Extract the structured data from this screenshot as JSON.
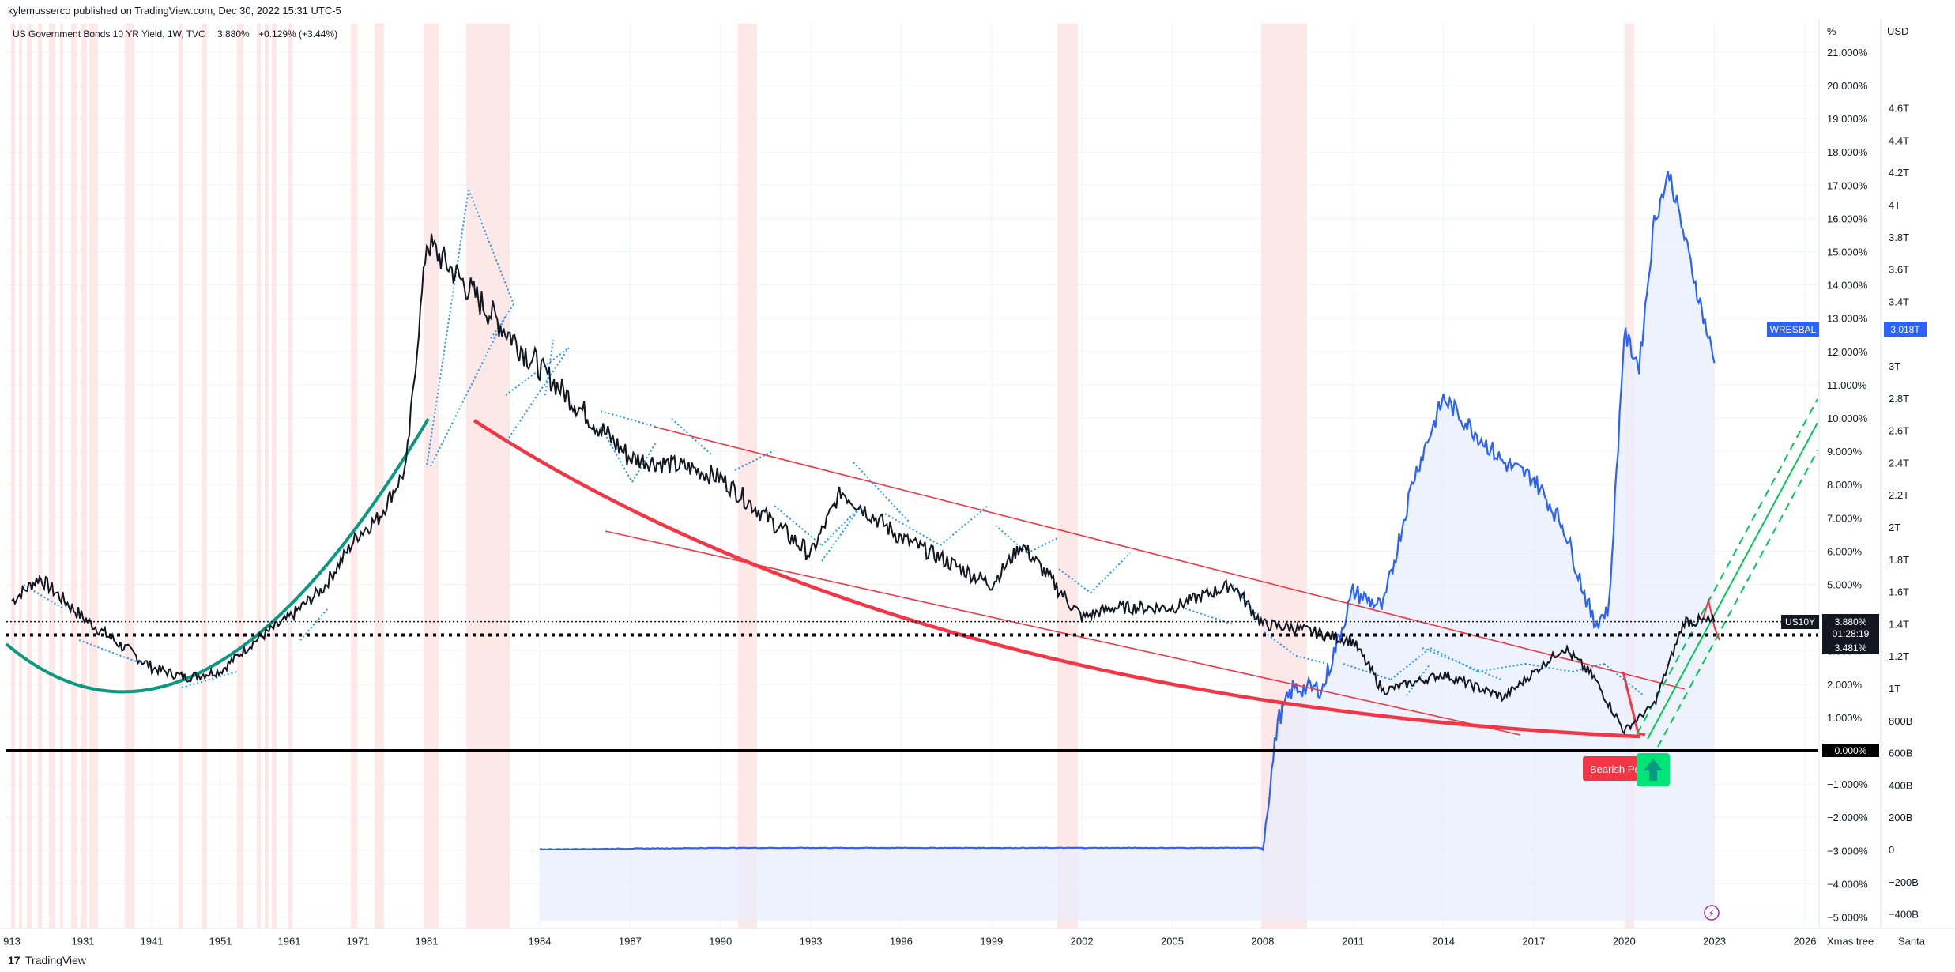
{
  "header": {
    "published_by": "kylemusserco published on TradingView.com, Dec 30, 2022 15:31 UTC-5"
  },
  "legend": {
    "symbol_line": "US Government Bonds 10 YR Yield, 1W, TVC",
    "last": "3.880%",
    "change": "+0.129% (+3.44%)"
  },
  "right_axis_pct": {
    "unit": "%",
    "ticks": [
      "21.000%",
      "20.000%",
      "19.000%",
      "18.000%",
      "17.000%",
      "16.000%",
      "15.000%",
      "14.000%",
      "13.000%",
      "12.000%",
      "11.000%",
      "10.000%",
      "9.000%",
      "8.000%",
      "7.000%",
      "6.000%",
      "5.000%",
      "4.000%",
      "3.000%",
      "2.000%",
      "1.000%",
      "0.000%",
      "−1.000%",
      "−2.000%",
      "−3.000%",
      "−4.000%",
      "−5.000%"
    ]
  },
  "right_axis_usd": {
    "unit": "USD",
    "ticks": [
      "4.6T",
      "4.4T",
      "4.2T",
      "4T",
      "3.8T",
      "3.6T",
      "3.4T",
      "3.2T",
      "3T",
      "2.8T",
      "2.6T",
      "2.4T",
      "2.2T",
      "2T",
      "1.8T",
      "1.6T",
      "1.4T",
      "1.2T",
      "1T",
      "800B",
      "600B",
      "400B",
      "200B",
      "0",
      "−200B",
      "−400B"
    ]
  },
  "x_axis": {
    "ticks": [
      "913",
      "1931",
      "1941",
      "1951",
      "1961",
      "1971",
      "1981",
      "1984",
      "1987",
      "1990",
      "1993",
      "1996",
      "1999",
      "2002",
      "2005",
      "2008",
      "2011",
      "2014",
      "2017",
      "2020",
      "2023",
      "2026"
    ],
    "extra_left": "Xmas tree",
    "extra_right": "Santa"
  },
  "badges": {
    "us10y_name": "US10Y",
    "us10y_value": "3.880%",
    "countdown": "01:28:19",
    "level_line": "3.481%",
    "zero_line": "0.000%",
    "wresbal_name": "WRESBAL",
    "wresbal_value": "3.018T",
    "bearish_label": "Bearish Pe",
    "lightning": "⚡"
  },
  "footer": {
    "brand": "TradingView",
    "logo": "17"
  },
  "colors": {
    "yield_line": "#131722",
    "wresbal_line": "#2962ff",
    "wresbal_fill": "#e8edfb",
    "recession_band": "#fde4e4",
    "red_trend": "#f23645",
    "green_arc": "#089981",
    "dotted_blue": "#2196f3",
    "green_channel": "#00c853"
  },
  "chart_data": {
    "type": "line",
    "title": "",
    "series": [
      {
        "name": "US Government Bonds 10 YR Yield",
        "unit": "%",
        "x": [
          "1913",
          "1920",
          "1931",
          "1941",
          "1946",
          "1951",
          "1956",
          "1961",
          "1966",
          "1971",
          "1974",
          "1978",
          "1981",
          "1984",
          "1987",
          "1989",
          "1990",
          "1993",
          "1994",
          "1996",
          "1999",
          "2000",
          "2002",
          "2003",
          "2005",
          "2007",
          "2008",
          "2009",
          "2011",
          "2012",
          "2014",
          "2016",
          "2018",
          "2019",
          "2020",
          "2021",
          "2022",
          "2023"
        ],
        "values": [
          4.5,
          5.2,
          4.0,
          2.5,
          2.2,
          2.4,
          3.3,
          4.0,
          4.9,
          6.5,
          7.0,
          8.5,
          15.3,
          11.5,
          8.8,
          8.5,
          8.2,
          5.9,
          7.8,
          6.4,
          5.0,
          6.2,
          4.0,
          4.3,
          4.3,
          5.0,
          3.8,
          3.7,
          3.3,
          1.8,
          2.3,
          1.6,
          3.1,
          2.2,
          0.6,
          1.4,
          3.9,
          3.88
        ]
      },
      {
        "name": "WRESBAL",
        "unit": "USD",
        "x": [
          "1984",
          "1990",
          "2000",
          "2008",
          "2008.5",
          "2009",
          "2010",
          "2011",
          "2012",
          "2013",
          "2014",
          "2015",
          "2016",
          "2017",
          "2018",
          "2019",
          "2019.5",
          "2020",
          "2020.5",
          "2021",
          "2021.5",
          "2022",
          "2023"
        ],
        "values": [
          0.001,
          0.01,
          0.01,
          0.01,
          0.8,
          1.0,
          1.0,
          1.6,
          1.5,
          2.3,
          2.8,
          2.6,
          2.4,
          2.3,
          2.0,
          1.4,
          1.5,
          3.2,
          3.0,
          3.9,
          4.2,
          3.8,
          3.018
        ]
      }
    ],
    "y_pct_range": [
      -5,
      21
    ],
    "y_usd_range": [
      "−400B",
      "4.6T"
    ],
    "grid": true,
    "legend_position": "top-left"
  }
}
